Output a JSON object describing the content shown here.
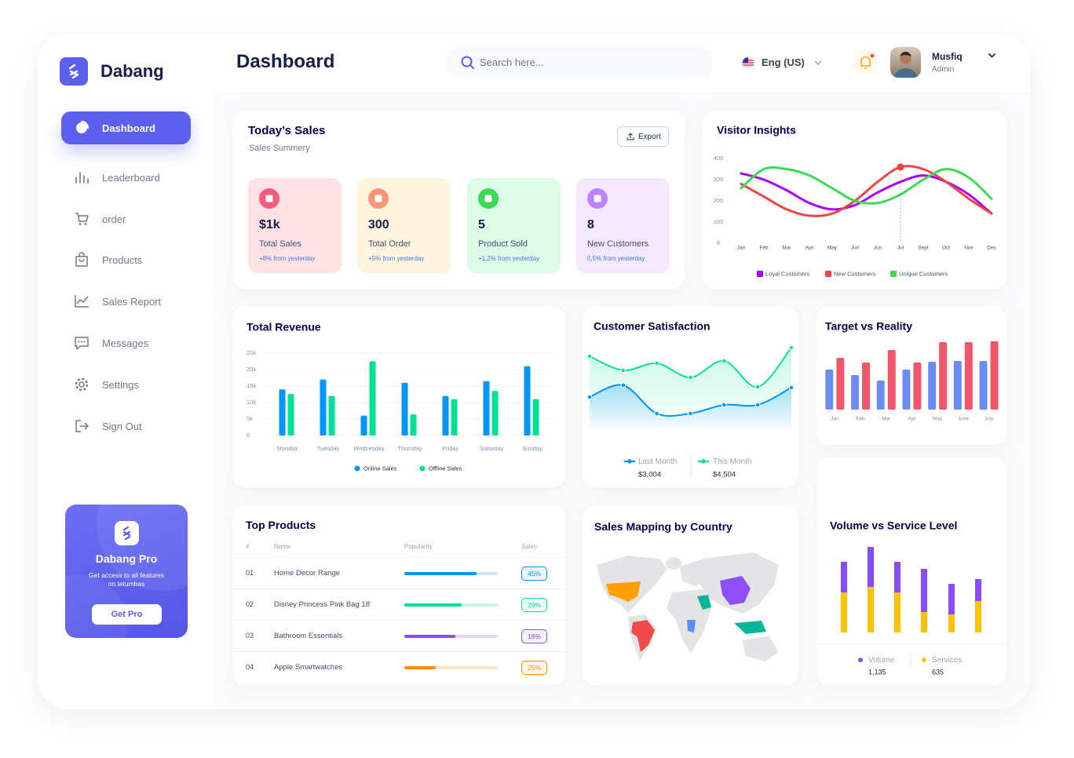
{
  "brand": "Dabang",
  "header": {
    "title": "Dashboard",
    "search_placeholder": "Search here...",
    "language": "Eng (US)",
    "user_name": "Musfiq",
    "user_role": "Admin"
  },
  "sidebar": {
    "items": [
      "Dashboard",
      "Leaderboard",
      "order",
      "Products",
      "Sales Report",
      "Messages",
      "Settings",
      "Sign Out"
    ]
  },
  "promo": {
    "title": "Dabang Pro",
    "text": "Get access to all features on tetumbas",
    "button": "Get Pro"
  },
  "todays_sales": {
    "title": "Today’s Sales",
    "subtitle": "Sales Summery",
    "export": "Export",
    "cards": [
      {
        "value": "$1k",
        "label": "Total Sales",
        "change": "+8% from yesterday"
      },
      {
        "value": "300",
        "label": "Total Order",
        "change": "+5% from yesterday"
      },
      {
        "value": "5",
        "label": "Product Sold",
        "change": "+1,2% from yesterday"
      },
      {
        "value": "8",
        "label": "New Customers",
        "change": "0,5% from yesterday"
      }
    ]
  },
  "top_products": {
    "title": "Top Products",
    "columns": [
      "#",
      "Name",
      "Popularity",
      "Sales"
    ],
    "rows": [
      {
        "rank": "01",
        "name": "Home Decor Range",
        "popularity": 0.77,
        "sales": "45%"
      },
      {
        "rank": "02",
        "name": "Disney Princess Pink Bag 18'",
        "popularity": 0.61,
        "sales": "29%"
      },
      {
        "rank": "03",
        "name": "Bathroom Essentials",
        "popularity": 0.55,
        "sales": "18%"
      },
      {
        "rank": "04",
        "name": "Apple Smartwatches",
        "popularity": 0.34,
        "sales": "25%"
      }
    ]
  },
  "map": {
    "title": "Sales Mapping by Country"
  },
  "chart_data": [
    {
      "type": "line",
      "title": "Visitor Insights",
      "categories": [
        "Jan",
        "Feb",
        "Mar",
        "Apr",
        "May",
        "Jun",
        "Jun",
        "Jul",
        "Sept",
        "Oct",
        "Nov",
        "Des"
      ],
      "ylim": [
        0,
        400
      ],
      "yticks": [
        0,
        100,
        200,
        300,
        400
      ],
      "series": [
        {
          "name": "Loyal Customers",
          "color": "#a700ff",
          "values": [
            330,
            300,
            250,
            190,
            160,
            180,
            240,
            290,
            320,
            290,
            230,
            140
          ]
        },
        {
          "name": "New Customers",
          "color": "#ef4444",
          "values": [
            280,
            220,
            160,
            130,
            140,
            200,
            290,
            360,
            350,
            290,
            210,
            140
          ]
        },
        {
          "name": "Unique Customers",
          "color": "#3cd856",
          "values": [
            260,
            350,
            350,
            320,
            260,
            200,
            190,
            230,
            300,
            350,
            310,
            210
          ]
        }
      ]
    },
    {
      "type": "bar",
      "title": "Total Revenue",
      "categories": [
        "Monday",
        "Tuesday",
        "Wednesday",
        "Thursday",
        "Friday",
        "Saturday",
        "Sunday"
      ],
      "ylim": [
        0,
        25000
      ],
      "yticks": [
        0,
        {
          "value": 5000,
          "label": "5k"
        },
        {
          "value": 10000,
          "label": "10k"
        },
        {
          "value": 15000,
          "label": "15k"
        },
        {
          "value": 20000,
          "label": "20k"
        },
        {
          "value": 25000,
          "label": "25k"
        }
      ],
      "grid": true,
      "series": [
        {
          "name": "Online Sales",
          "color": "#0095ff",
          "values": [
            14000,
            17000,
            6000,
            16000,
            12000,
            16500,
            21000
          ]
        },
        {
          "name": "Offline Sales",
          "color": "#00e096",
          "values": [
            12600,
            12000,
            22500,
            6400,
            11000,
            13500,
            11000
          ]
        }
      ]
    },
    {
      "type": "area",
      "title": "Customer Satisfaction",
      "series": [
        {
          "name": "Last Month",
          "color": "#0095ff",
          "total": "$3,004",
          "values": [
            39,
            54,
            18,
            18,
            29,
            29,
            51
          ]
        },
        {
          "name": "This Month",
          "color": "#07e098",
          "total": "$4,504",
          "values": [
            91,
            73,
            82,
            64,
            85,
            52,
            102
          ]
        }
      ]
    },
    {
      "type": "bar",
      "title": "Target vs Reality",
      "categories": [
        "Jan",
        "Feb",
        "Mar",
        "Apr",
        "May",
        "June",
        "July"
      ],
      "series": [
        {
          "color": "#6c8cf5",
          "values": [
            51,
            44,
            37,
            51,
            61,
            62,
            62
          ]
        },
        {
          "color": "#f1566b",
          "values": [
            66,
            60,
            76,
            60,
            86,
            86,
            87
          ]
        }
      ]
    },
    {
      "type": "stacked_bar",
      "title": "Volume vs Service Level",
      "series": [
        {
          "name": "Volume",
          "color": "#884dff",
          "total": "1,135",
          "values": [
            39,
            51,
            39,
            55,
            39,
            28
          ]
        },
        {
          "name": "Services",
          "color": "#fcc400",
          "total": "635",
          "values": [
            51,
            58,
            51,
            26,
            23,
            40
          ]
        }
      ]
    }
  ]
}
